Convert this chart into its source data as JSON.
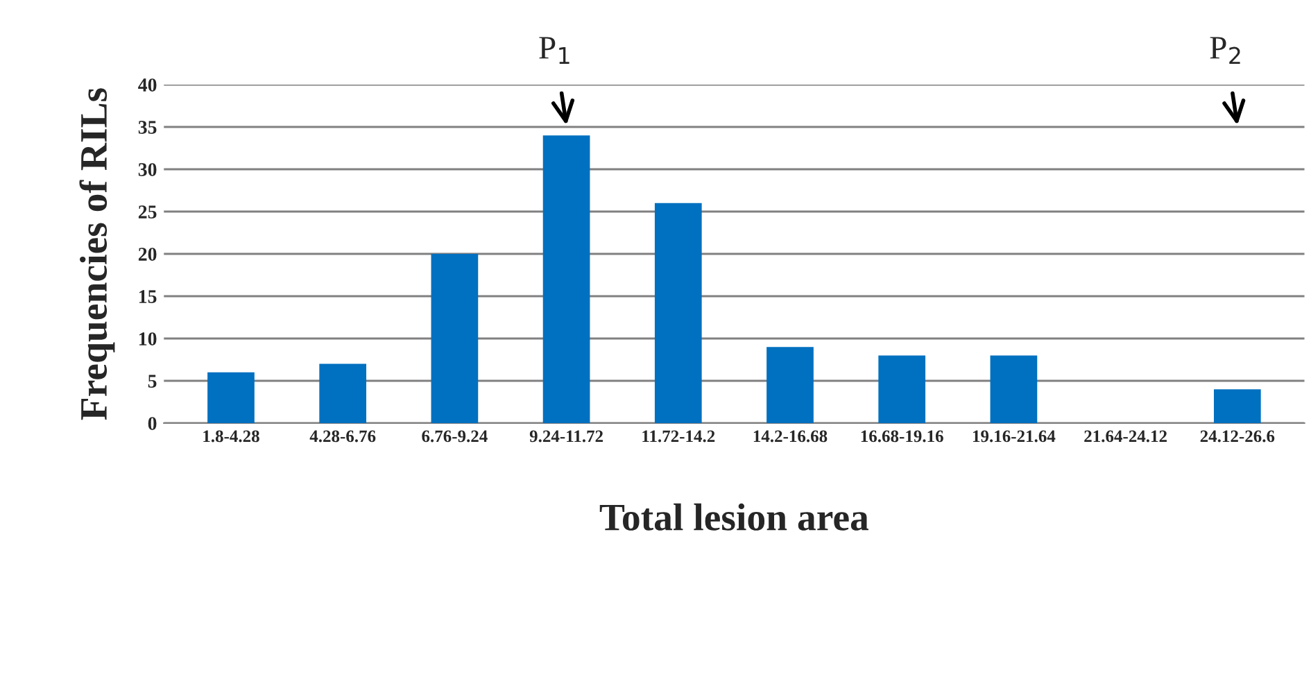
{
  "chart_data": {
    "type": "bar",
    "xlabel": "Total lesion area",
    "ylabel": "Frequencies of RILs",
    "categories": [
      "1.8-4.28",
      "4.28-6.76",
      "6.76-9.24",
      "9.24-11.72",
      "11.72-14.2",
      "14.2-16.68",
      "16.68-19.16",
      "19.16-21.64",
      "21.64-24.12",
      "24.12-26.6"
    ],
    "values": [
      6,
      7,
      20,
      34,
      26,
      9,
      8,
      8,
      0,
      4
    ],
    "color": "#0070c0",
    "ylim": [
      0,
      40
    ],
    "yticks": [
      0,
      5,
      10,
      15,
      20,
      25,
      30,
      35,
      40
    ],
    "grid": "y",
    "annotations": [
      {
        "text": "P$_{1}$",
        "x": "9.24-11.72"
      },
      {
        "text": "P$_{2}$",
        "x": "24.12-26.6"
      }
    ]
  }
}
